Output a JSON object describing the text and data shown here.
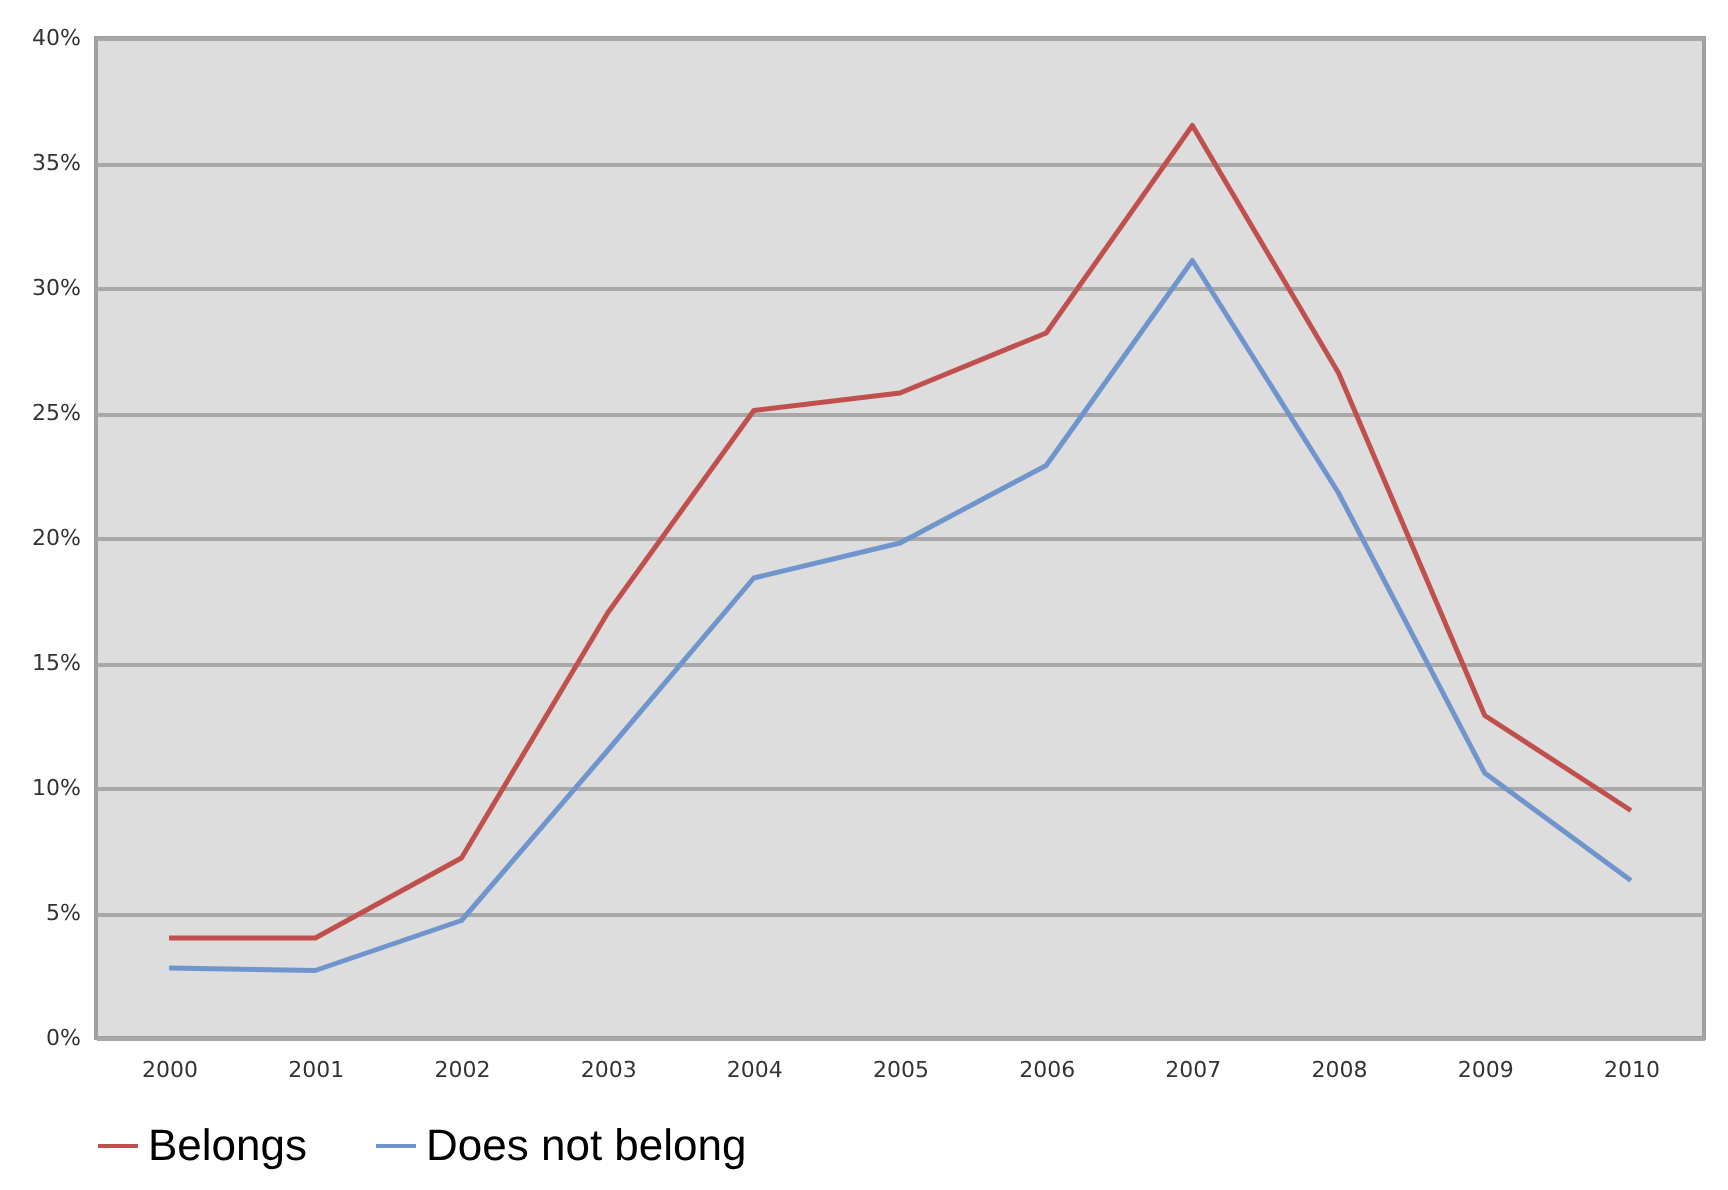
{
  "chart_data": {
    "type": "line",
    "categories": [
      "2000",
      "2001",
      "2002",
      "2003",
      "2004",
      "2005",
      "2006",
      "2007",
      "2008",
      "2009",
      "2010"
    ],
    "series": [
      {
        "name": "Belongs",
        "color": "#c0504d",
        "values": [
          4.0,
          4.0,
          7.2,
          17.0,
          25.1,
          25.8,
          28.2,
          36.5,
          26.6,
          12.9,
          9.1
        ]
      },
      {
        "name": "Does not belong",
        "color": "#6f95cc",
        "values": [
          2.8,
          2.7,
          4.7,
          11.5,
          18.4,
          19.8,
          22.9,
          31.1,
          21.8,
          10.6,
          6.3
        ]
      }
    ],
    "ylim": [
      0,
      40
    ],
    "yticks": [
      {
        "value": 0,
        "label": "0%"
      },
      {
        "value": 5,
        "label": "5%"
      },
      {
        "value": 10,
        "label": "10%"
      },
      {
        "value": 15,
        "label": "15%"
      },
      {
        "value": 20,
        "label": "20%"
      },
      {
        "value": 25,
        "label": "25%"
      },
      {
        "value": 30,
        "label": "30%"
      },
      {
        "value": 35,
        "label": "35%"
      },
      {
        "value": 40,
        "label": "40%"
      }
    ],
    "grid": "y",
    "legend": "bottom left",
    "marker": "none",
    "line_style": "solid"
  }
}
